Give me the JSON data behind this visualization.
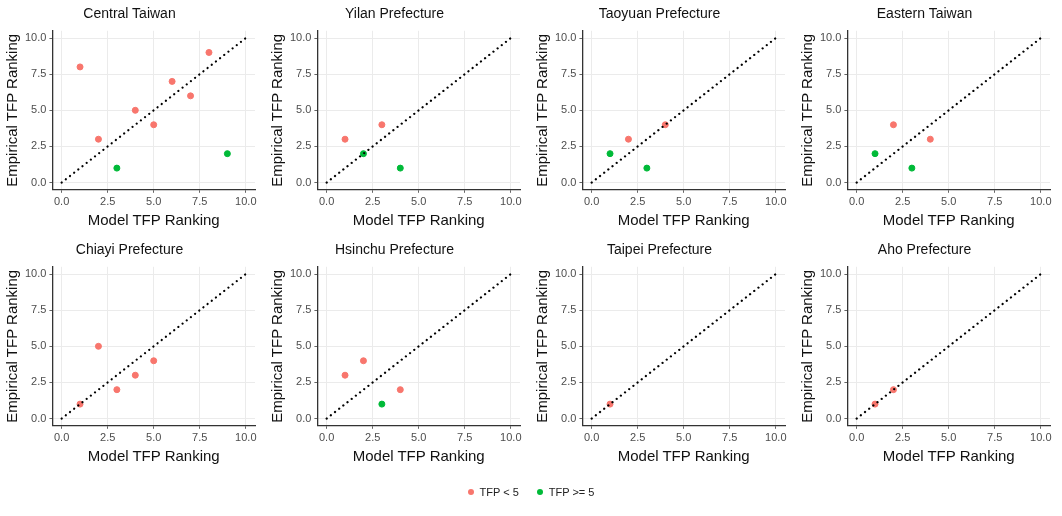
{
  "chart_data": [
    {
      "type": "scatter",
      "title": "Central Taiwan",
      "xlabel": "Model TFP Ranking",
      "ylabel": "Empirical TFP Ranking",
      "xlim": [
        -0.5,
        10.5
      ],
      "ylim": [
        -0.5,
        10.5
      ],
      "xticks": [
        {
          "value": 0,
          "label": "0.0"
        },
        {
          "value": 2.5,
          "label": "2.5"
        },
        {
          "value": 5,
          "label": "5.0"
        },
        {
          "value": 7.5,
          "label": "7.5"
        },
        {
          "value": 10,
          "label": "10.0"
        }
      ],
      "yticks": [
        {
          "value": 0,
          "label": "0.0"
        },
        {
          "value": 2.5,
          "label": "2.5"
        },
        {
          "value": 5,
          "label": "5.0"
        },
        {
          "value": 7.5,
          "label": "7.5"
        },
        {
          "value": 10,
          "label": "10.0"
        }
      ],
      "grid": true,
      "legend": "bottom",
      "marker": "circle",
      "series": [
        {
          "name": "TFP < 5",
          "color": "#f8766d",
          "x": [
            1,
            2,
            4,
            5,
            6,
            7,
            8
          ],
          "values": [
            8,
            3,
            5,
            4,
            7,
            6,
            9
          ]
        },
        {
          "name": "TFP >= 5",
          "color": "#00ba38",
          "x": [
            3,
            9
          ],
          "values": [
            1,
            2
          ]
        },
        {
          "type": "line",
          "color": "#000000",
          "x": [
            0,
            10
          ],
          "values": [
            0,
            10
          ],
          "line_style": "dotted",
          "marker": "none"
        }
      ]
    },
    {
      "type": "scatter",
      "title": "Yilan Prefecture",
      "xlabel": "Model TFP Ranking",
      "ylabel": "Empirical TFP Ranking",
      "xlim": [
        -0.5,
        10.5
      ],
      "ylim": [
        -0.5,
        10.5
      ],
      "xticks": [
        {
          "value": 0,
          "label": "0.0"
        },
        {
          "value": 2.5,
          "label": "2.5"
        },
        {
          "value": 5,
          "label": "5.0"
        },
        {
          "value": 7.5,
          "label": "7.5"
        },
        {
          "value": 10,
          "label": "10.0"
        }
      ],
      "yticks": [
        {
          "value": 0,
          "label": "0.0"
        },
        {
          "value": 2.5,
          "label": "2.5"
        },
        {
          "value": 5,
          "label": "5.0"
        },
        {
          "value": 7.5,
          "label": "7.5"
        },
        {
          "value": 10,
          "label": "10.0"
        }
      ],
      "grid": true,
      "legend": "bottom",
      "marker": "circle",
      "series": [
        {
          "name": "TFP < 5",
          "color": "#f8766d",
          "x": [
            1,
            3
          ],
          "values": [
            3,
            4
          ]
        },
        {
          "name": "TFP >= 5",
          "color": "#00ba38",
          "x": [
            2,
            4
          ],
          "values": [
            2,
            1
          ]
        },
        {
          "type": "line",
          "color": "#000000",
          "x": [
            0,
            10
          ],
          "values": [
            0,
            10
          ],
          "line_style": "dotted",
          "marker": "none"
        }
      ]
    },
    {
      "type": "scatter",
      "title": "Taoyuan Prefecture",
      "xlabel": "Model TFP Ranking",
      "ylabel": "Empirical TFP Ranking",
      "xlim": [
        -0.5,
        10.5
      ],
      "ylim": [
        -0.5,
        10.5
      ],
      "xticks": [
        {
          "value": 0,
          "label": "0.0"
        },
        {
          "value": 2.5,
          "label": "2.5"
        },
        {
          "value": 5,
          "label": "5.0"
        },
        {
          "value": 7.5,
          "label": "7.5"
        },
        {
          "value": 10,
          "label": "10.0"
        }
      ],
      "yticks": [
        {
          "value": 0,
          "label": "0.0"
        },
        {
          "value": 2.5,
          "label": "2.5"
        },
        {
          "value": 5,
          "label": "5.0"
        },
        {
          "value": 7.5,
          "label": "7.5"
        },
        {
          "value": 10,
          "label": "10.0"
        }
      ],
      "grid": true,
      "legend": "bottom",
      "marker": "circle",
      "series": [
        {
          "name": "TFP < 5",
          "color": "#f8766d",
          "x": [
            2,
            4
          ],
          "values": [
            3,
            4
          ]
        },
        {
          "name": "TFP >= 5",
          "color": "#00ba38",
          "x": [
            1,
            3
          ],
          "values": [
            2,
            1
          ]
        },
        {
          "type": "line",
          "color": "#000000",
          "x": [
            0,
            10
          ],
          "values": [
            0,
            10
          ],
          "line_style": "dotted",
          "marker": "none"
        }
      ]
    },
    {
      "type": "scatter",
      "title": "Eastern Taiwan",
      "xlabel": "Model TFP Ranking",
      "ylabel": "Empirical TFP Ranking",
      "xlim": [
        -0.5,
        10.5
      ],
      "ylim": [
        -0.5,
        10.5
      ],
      "xticks": [
        {
          "value": 0,
          "label": "0.0"
        },
        {
          "value": 2.5,
          "label": "2.5"
        },
        {
          "value": 5,
          "label": "5.0"
        },
        {
          "value": 7.5,
          "label": "7.5"
        },
        {
          "value": 10,
          "label": "10.0"
        }
      ],
      "yticks": [
        {
          "value": 0,
          "label": "0.0"
        },
        {
          "value": 2.5,
          "label": "2.5"
        },
        {
          "value": 5,
          "label": "5.0"
        },
        {
          "value": 7.5,
          "label": "7.5"
        },
        {
          "value": 10,
          "label": "10.0"
        }
      ],
      "grid": true,
      "legend": "bottom",
      "marker": "circle",
      "series": [
        {
          "name": "TFP < 5",
          "color": "#f8766d",
          "x": [
            2,
            4
          ],
          "values": [
            4,
            3
          ]
        },
        {
          "name": "TFP >= 5",
          "color": "#00ba38",
          "x": [
            1,
            3
          ],
          "values": [
            2,
            1
          ]
        },
        {
          "type": "line",
          "color": "#000000",
          "x": [
            0,
            10
          ],
          "values": [
            0,
            10
          ],
          "line_style": "dotted",
          "marker": "none"
        }
      ]
    },
    {
      "type": "scatter",
      "title": "Chiayi Prefecture",
      "xlabel": "Model TFP Ranking",
      "ylabel": "Empirical TFP Ranking",
      "xlim": [
        -0.5,
        10.5
      ],
      "ylim": [
        -0.5,
        10.5
      ],
      "xticks": [
        {
          "value": 0,
          "label": "0.0"
        },
        {
          "value": 2.5,
          "label": "2.5"
        },
        {
          "value": 5,
          "label": "5.0"
        },
        {
          "value": 7.5,
          "label": "7.5"
        },
        {
          "value": 10,
          "label": "10.0"
        }
      ],
      "yticks": [
        {
          "value": 0,
          "label": "0.0"
        },
        {
          "value": 2.5,
          "label": "2.5"
        },
        {
          "value": 5,
          "label": "5.0"
        },
        {
          "value": 7.5,
          "label": "7.5"
        },
        {
          "value": 10,
          "label": "10.0"
        }
      ],
      "grid": true,
      "legend": "bottom",
      "marker": "circle",
      "series": [
        {
          "name": "TFP < 5",
          "color": "#f8766d",
          "x": [
            1,
            2,
            3,
            4,
            5
          ],
          "values": [
            1,
            5,
            2,
            3,
            4
          ]
        },
        {
          "type": "line",
          "color": "#000000",
          "x": [
            0,
            10
          ],
          "values": [
            0,
            10
          ],
          "line_style": "dotted",
          "marker": "none"
        }
      ]
    },
    {
      "type": "scatter",
      "title": "Hsinchu Prefecture",
      "xlabel": "Model TFP Ranking",
      "ylabel": "Empirical TFP Ranking",
      "xlim": [
        -0.5,
        10.5
      ],
      "ylim": [
        -0.5,
        10.5
      ],
      "xticks": [
        {
          "value": 0,
          "label": "0.0"
        },
        {
          "value": 2.5,
          "label": "2.5"
        },
        {
          "value": 5,
          "label": "5.0"
        },
        {
          "value": 7.5,
          "label": "7.5"
        },
        {
          "value": 10,
          "label": "10.0"
        }
      ],
      "yticks": [
        {
          "value": 0,
          "label": "0.0"
        },
        {
          "value": 2.5,
          "label": "2.5"
        },
        {
          "value": 5,
          "label": "5.0"
        },
        {
          "value": 7.5,
          "label": "7.5"
        },
        {
          "value": 10,
          "label": "10.0"
        }
      ],
      "grid": true,
      "legend": "bottom",
      "marker": "circle",
      "series": [
        {
          "name": "TFP < 5",
          "color": "#f8766d",
          "x": [
            1,
            2,
            4
          ],
          "values": [
            3,
            4,
            2
          ]
        },
        {
          "name": "TFP >= 5",
          "color": "#00ba38",
          "x": [
            3
          ],
          "values": [
            1
          ]
        },
        {
          "type": "line",
          "color": "#000000",
          "x": [
            0,
            10
          ],
          "values": [
            0,
            10
          ],
          "line_style": "dotted",
          "marker": "none"
        }
      ]
    },
    {
      "type": "scatter",
      "title": "Taipei Prefecture",
      "xlabel": "Model TFP Ranking",
      "ylabel": "Empirical TFP Ranking",
      "xlim": [
        -0.5,
        10.5
      ],
      "ylim": [
        -0.5,
        10.5
      ],
      "xticks": [
        {
          "value": 0,
          "label": "0.0"
        },
        {
          "value": 2.5,
          "label": "2.5"
        },
        {
          "value": 5,
          "label": "5.0"
        },
        {
          "value": 7.5,
          "label": "7.5"
        },
        {
          "value": 10,
          "label": "10.0"
        }
      ],
      "yticks": [
        {
          "value": 0,
          "label": "0.0"
        },
        {
          "value": 2.5,
          "label": "2.5"
        },
        {
          "value": 5,
          "label": "5.0"
        },
        {
          "value": 7.5,
          "label": "7.5"
        },
        {
          "value": 10,
          "label": "10.0"
        }
      ],
      "grid": true,
      "legend": "bottom",
      "marker": "circle",
      "series": [
        {
          "name": "TFP < 5",
          "color": "#f8766d",
          "x": [
            1
          ],
          "values": [
            1
          ]
        },
        {
          "type": "line",
          "color": "#000000",
          "x": [
            0,
            10
          ],
          "values": [
            0,
            10
          ],
          "line_style": "dotted",
          "marker": "none"
        }
      ]
    },
    {
      "type": "scatter",
      "title": "Aho Prefecture",
      "xlabel": "Model TFP Ranking",
      "ylabel": "Empirical TFP Ranking",
      "xlim": [
        -0.5,
        10.5
      ],
      "ylim": [
        -0.5,
        10.5
      ],
      "xticks": [
        {
          "value": 0,
          "label": "0.0"
        },
        {
          "value": 2.5,
          "label": "2.5"
        },
        {
          "value": 5,
          "label": "5.0"
        },
        {
          "value": 7.5,
          "label": "7.5"
        },
        {
          "value": 10,
          "label": "10.0"
        }
      ],
      "yticks": [
        {
          "value": 0,
          "label": "0.0"
        },
        {
          "value": 2.5,
          "label": "2.5"
        },
        {
          "value": 5,
          "label": "5.0"
        },
        {
          "value": 7.5,
          "label": "7.5"
        },
        {
          "value": 10,
          "label": "10.0"
        }
      ],
      "grid": true,
      "legend": "bottom",
      "marker": "circle",
      "series": [
        {
          "name": "TFP < 5",
          "color": "#f8766d",
          "x": [
            1,
            2
          ],
          "values": [
            1,
            2
          ]
        },
        {
          "type": "line",
          "color": "#000000",
          "x": [
            0,
            10
          ],
          "values": [
            0,
            10
          ],
          "line_style": "dotted",
          "marker": "none"
        }
      ]
    }
  ]
}
